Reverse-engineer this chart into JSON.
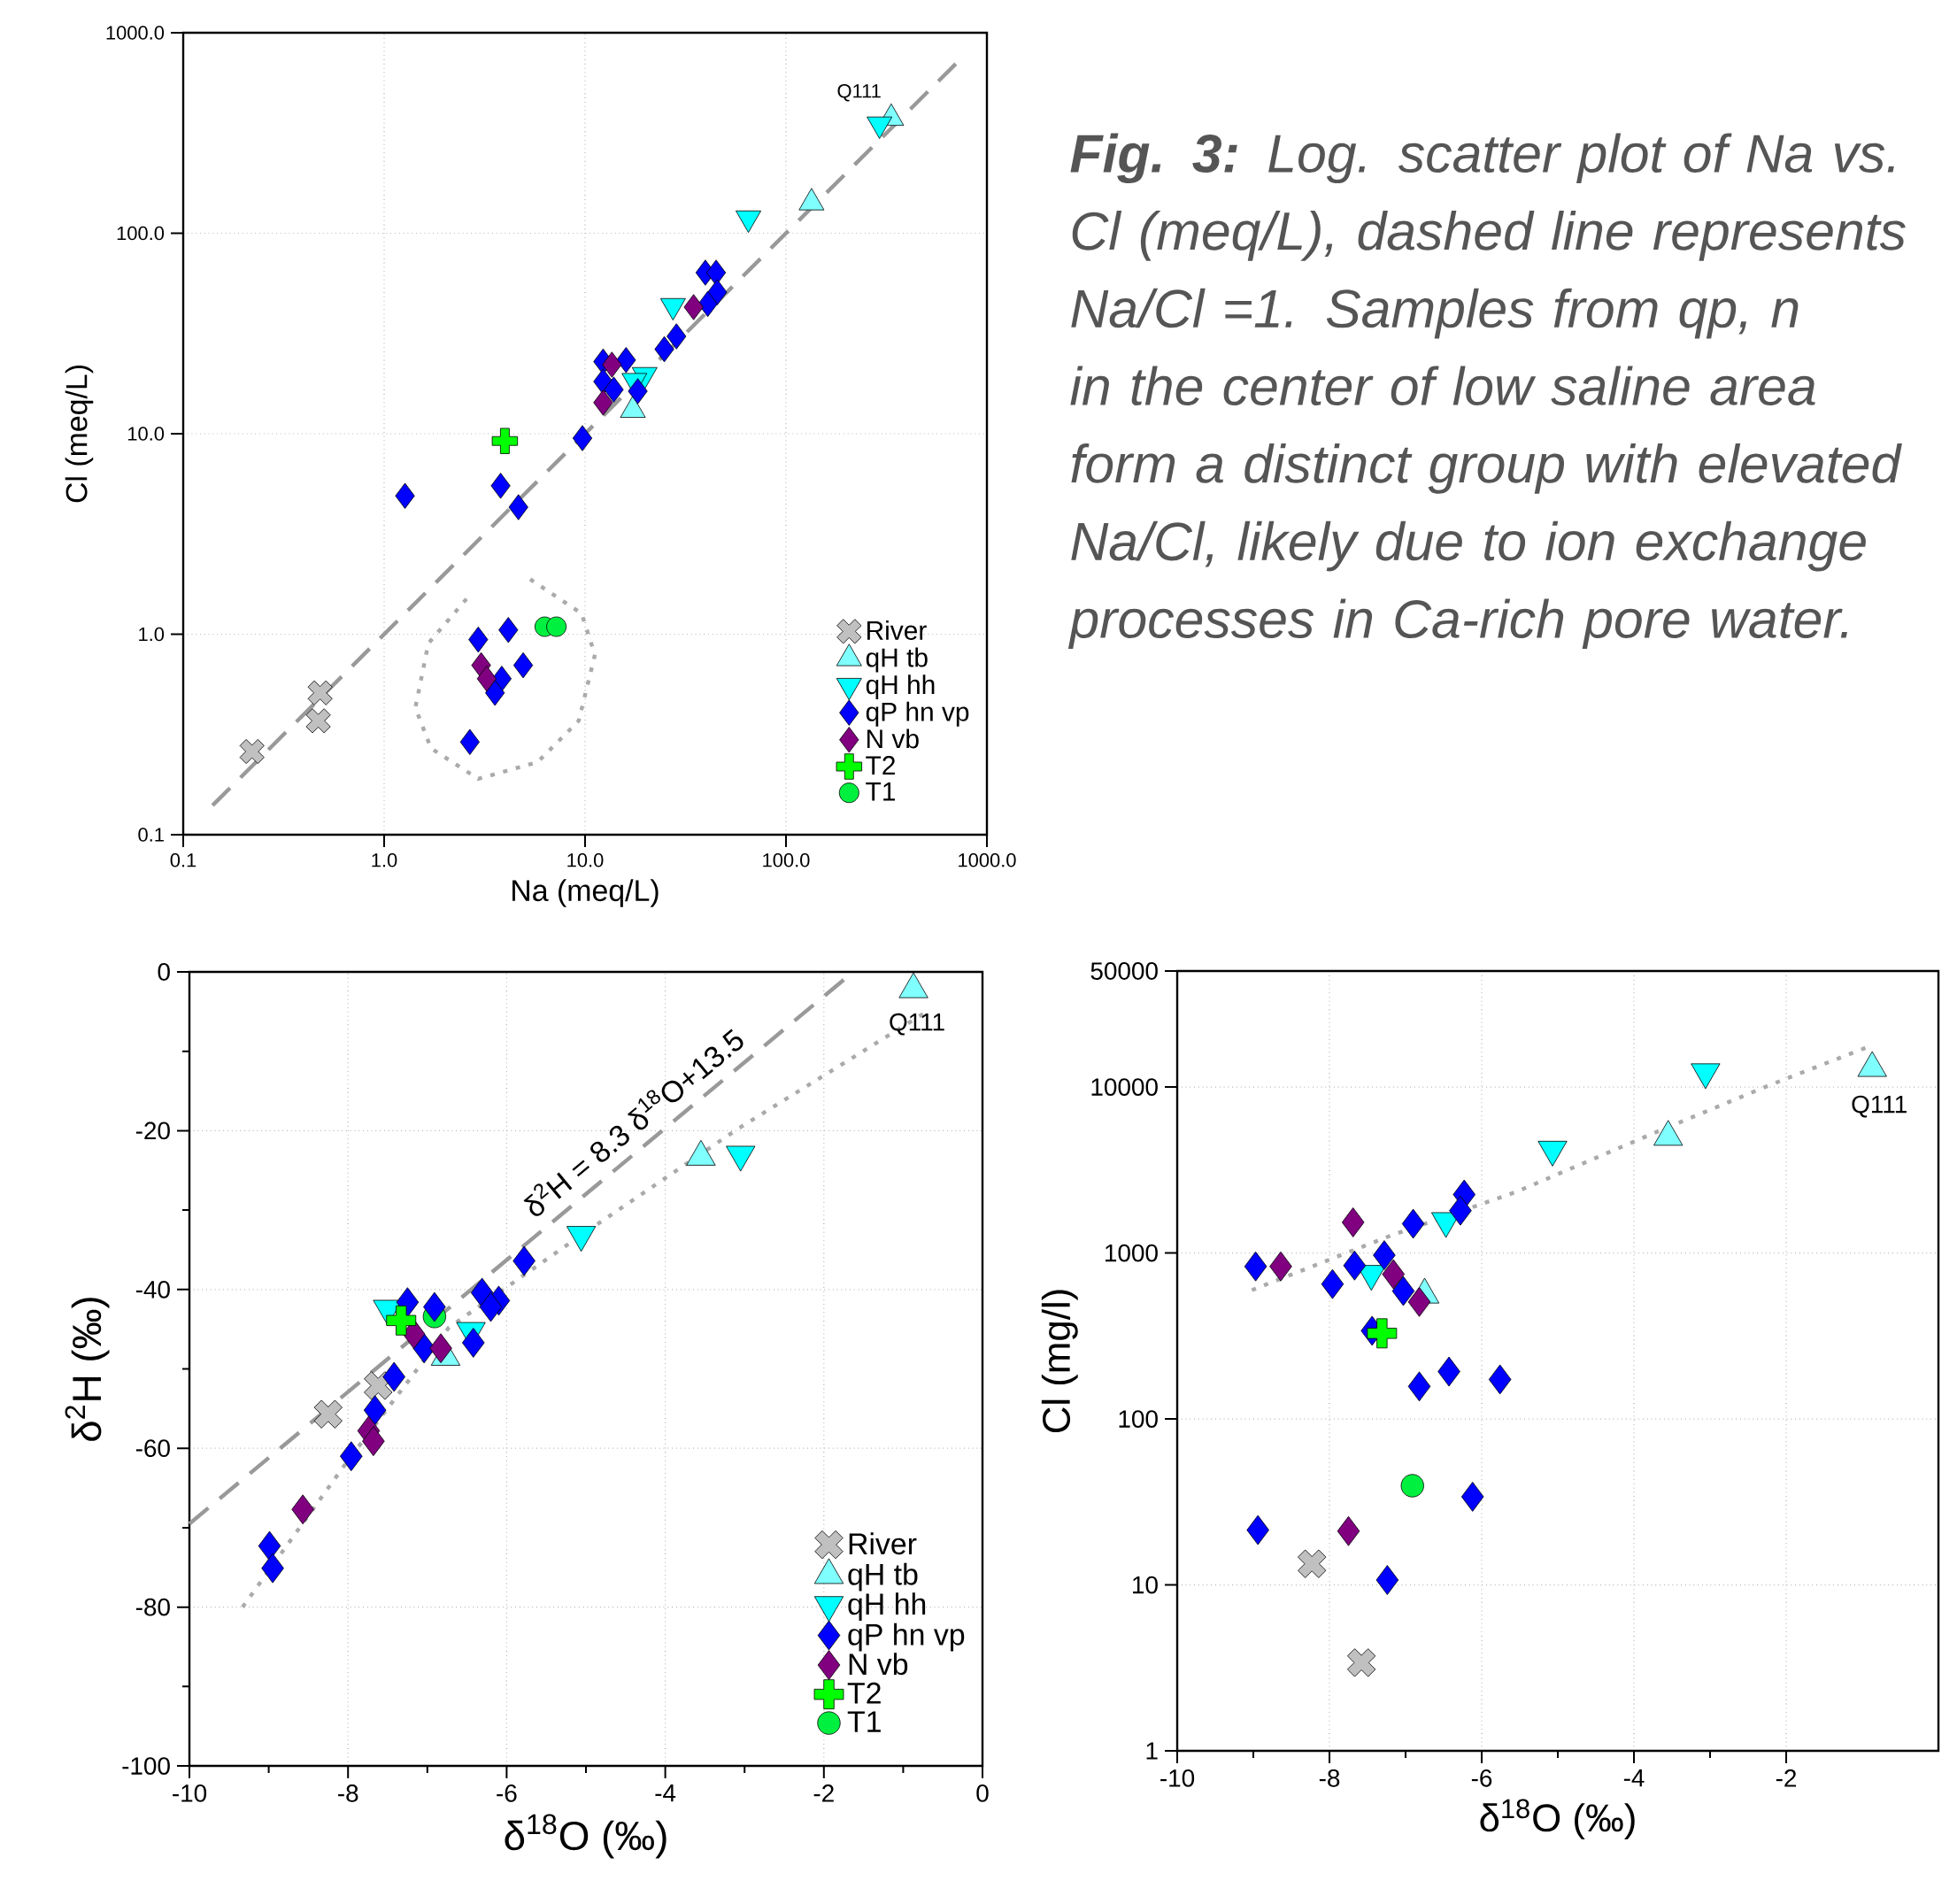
{
  "chart_data": [
    {
      "type": "scatter",
      "xlabel": "Na (meq/L)",
      "ylabel": "Cl (meq/L)",
      "log": "xy",
      "xlim": [
        0.1,
        1000
      ],
      "ylim": [
        0.1,
        1000
      ],
      "xticks": [
        0.1,
        {
          "value": 1,
          "label": "1.0"
        },
        {
          "value": 10,
          "label": "10.0"
        },
        {
          "value": 100,
          "label": "100.0"
        },
        {
          "value": 1000,
          "label": "1000.0"
        }
      ],
      "yticks": [
        0.1,
        {
          "value": 1,
          "label": "1.0"
        },
        {
          "value": 10,
          "label": "10.0"
        },
        {
          "value": 100,
          "label": "100.0"
        },
        {
          "value": 1000,
          "label": "1000.0"
        }
      ],
      "grid": true,
      "legend": "bottom right",
      "annotations": [
        {
          "text": "Q111",
          "x": 334,
          "y": 375
        }
      ],
      "series": [
        {
          "type": "line",
          "color": "#999999",
          "line_style": "dashed",
          "marker": "none",
          "x": [
            0.14,
            700
          ],
          "values": [
            0.14,
            700
          ]
        },
        {
          "type": "line",
          "color": "#aaaaaa",
          "line_style": "dotted",
          "marker": "none",
          "x": [
            5.33,
            9.6,
            11.2,
            9.3,
            5.8,
            2.94,
            1.71,
            1.43,
            1.66,
            2.57
          ],
          "values": [
            1.88,
            1.27,
            0.79,
            0.37,
            0.23,
            0.19,
            0.27,
            0.43,
            0.9,
            1.5
          ]
        },
        {
          "name": "River",
          "color": "#c0c0c0",
          "marker": "cross",
          "x": [
            0.22,
            0.48,
            0.47
          ],
          "values": [
            0.26,
            0.51,
            0.37
          ]
        },
        {
          "name": "qH tb",
          "color": "#80ffff",
          "marker": "triangle",
          "x": [
            334,
            134,
            17.3
          ],
          "values": [
            375,
            142,
            13.1
          ]
        },
        {
          "name": "qH hh",
          "color": "#00ffff",
          "marker": "triangle-down",
          "x": [
            292,
            65,
            27.4,
            19.8,
            17.6
          ],
          "values": [
            350,
            119,
            43.5,
            19.7,
            18.4
          ]
        },
        {
          "name": "qP hn vp",
          "color": "#0000ff",
          "marker": "diamond",
          "x": [
            1.27,
            3.8,
            4.66,
            9.7,
            12.3,
            16.0,
            12.3,
            13.9,
            18.3,
            24.8,
            28.5,
            39.7,
            44.9,
            45.5,
            40.8,
            2.94,
            4.15,
            4.92,
            3.85,
            3.56,
            2.67
          ],
          "values": [
            4.9,
            5.5,
            4.3,
            9.5,
            22.9,
            23.3,
            18.2,
            16.6,
            16.3,
            26.4,
            30.6,
            63.6,
            63.6,
            50.8,
            44.4,
            0.94,
            1.05,
            0.7,
            0.6,
            0.51,
            0.29
          ]
        },
        {
          "name": "N vb",
          "color": "#800080",
          "marker": "diamond",
          "x": [
            12.3,
            13.6,
            34.7,
            3.04,
            3.24
          ],
          "values": [
            14.3,
            22.1,
            42.8,
            0.7,
            0.6
          ]
        },
        {
          "name": "T2",
          "color": "#00ff00",
          "marker": "cross",
          "x": [
            3.99
          ],
          "values": [
            9.2
          ]
        },
        {
          "name": "T1",
          "color": "#00f040",
          "marker": "circle",
          "x": [
            6.3,
            7.2
          ],
          "values": [
            1.09,
            1.09
          ]
        }
      ]
    },
    {
      "type": "scatter",
      "xlabel": "δ$^{18}$O (‰)",
      "ylabel": "δ$^{2}$H (‰)",
      "xlim": [
        -10,
        0
      ],
      "ylim": [
        -100,
        0
      ],
      "xticks": [
        -10,
        -8,
        -6,
        -4,
        -2,
        0
      ],
      "yticks": [
        -100,
        -80,
        -60,
        -40,
        -20,
        0
      ],
      "grid": true,
      "legend": "bottom right",
      "annotations": [
        {
          "text": "δ$^{2}$H = 8.3 δ$^{18}$O+13.5",
          "x": -4.2,
          "y": -21.4
        },
        {
          "text": "Q111",
          "x": -0.87,
          "y": -2.2
        }
      ],
      "series": [
        {
          "type": "line",
          "color": "#999999",
          "line_style": "dashed",
          "marker": "none",
          "x": [
            -10,
            -1.75
          ],
          "values": [
            -69.5,
            -1.0
          ]
        },
        {
          "type": "line",
          "color": "#aaaaaa",
          "line_style": "dotted",
          "marker": "none",
          "x": [
            -9.33,
            -8.02,
            -6.73,
            -5.11,
            -3.09,
            -0.75
          ],
          "values": [
            -80,
            -61.8,
            -44.8,
            -33.5,
            -19.8,
            -5.3
          ]
        },
        {
          "name": "River",
          "color": "#c0c0c0",
          "marker": "cross",
          "x": [
            -8.25,
            -7.62
          ],
          "values": [
            -55.7,
            -52.1
          ]
        },
        {
          "name": "qH tb",
          "color": "#80ffff",
          "marker": "triangle",
          "x": [
            -0.87,
            -3.55,
            -6.77
          ],
          "values": [
            -2.2,
            -23.3,
            -48.5
          ]
        },
        {
          "name": "qH hh",
          "color": "#00ffff",
          "marker": "triangle-down",
          "x": [
            -3.05,
            -5.06,
            -7.5,
            -6.45
          ],
          "values": [
            -23,
            -33.1,
            -42.4,
            -45.2
          ]
        },
        {
          "name": "qP hn vp",
          "color": "#0000ff",
          "marker": "diamond",
          "x": [
            -8.99,
            -8.95,
            -7.96,
            -7.66,
            -7.42,
            -7.25,
            -7.04,
            -6.91,
            -6.42,
            -6.31,
            -6.1,
            -6.2,
            -5.78
          ],
          "values": [
            -72.3,
            -75.1,
            -61.0,
            -55.2,
            -51.0,
            -41.6,
            -47.4,
            -42.2,
            -46.7,
            -40.4,
            -41.4,
            -42.2,
            -36.4
          ]
        },
        {
          "name": "N vb",
          "color": "#800080",
          "marker": "diamond",
          "x": [
            -8.57,
            -7.74,
            -7.68,
            -6.83,
            -7.17
          ],
          "values": [
            -67.7,
            -57.8,
            -59.1,
            -47.4,
            -45.6
          ]
        },
        {
          "name": "T2",
          "color": "#00ff00",
          "marker": "cross",
          "x": [
            -7.33
          ],
          "values": [
            -43.9
          ]
        },
        {
          "name": "T1",
          "color": "#00f040",
          "marker": "circle",
          "x": [
            -6.91
          ],
          "values": [
            -43.4
          ]
        }
      ]
    },
    {
      "type": "scatter",
      "xlabel": "δ$^{18}$O (‰)",
      "ylabel": "Cl (mg/l)",
      "log": "y",
      "xlim": [
        -10,
        0
      ],
      "ylim": [
        1,
        50000
      ],
      "xticks": [
        -10,
        -8,
        -6,
        -4,
        -2
      ],
      "yticks": [
        1,
        10,
        100,
        1000,
        10000,
        50000
      ],
      "grid": true,
      "annotations": [
        {
          "text": "Q111",
          "x": -0.87,
          "y": 13000
        }
      ],
      "series": [
        {
          "type": "line",
          "color": "#aaaaaa",
          "line_style": "dotted",
          "marker": "none",
          "x": [
            -9.02,
            -7.2,
            -5.54,
            -3.72,
            -2.21,
            -0.96
          ],
          "values": [
            597,
            1270,
            2340,
            5320,
            10300,
            17200
          ]
        },
        {
          "color": "#c0c0c0",
          "marker": "cross",
          "x": [
            -8.23,
            -7.58
          ],
          "values": [
            13.4,
            3.4
          ]
        },
        {
          "color": "#80ffff",
          "marker": "triangle",
          "x": [
            -0.87,
            -3.55,
            -6.75
          ],
          "values": [
            13000,
            5000,
            560
          ]
        },
        {
          "color": "#00ffff",
          "marker": "triangle-down",
          "x": [
            -3.06,
            -5.07,
            -6.47,
            -7.45
          ],
          "values": [
            12300,
            4200,
            1560,
            750
          ]
        },
        {
          "color": "#0000ff",
          "marker": "diamond",
          "x": [
            -8.97,
            -7.96,
            -7.67,
            -7.28,
            -7.03,
            -6.9,
            -6.23,
            -6.28,
            -7.44,
            -6.82,
            -6.43,
            -5.76,
            -6.12,
            -8.94,
            -7.24
          ],
          "values": [
            830,
            650,
            840,
            970,
            590,
            1500,
            2250,
            1800,
            340,
            157,
            193,
            173,
            34,
            21.4,
            10.7
          ]
        },
        {
          "color": "#800080",
          "marker": "diamond",
          "x": [
            -7.69,
            -8.64,
            -7.16,
            -6.82,
            -7.75
          ],
          "values": [
            1530,
            830,
            745,
            507,
            21.1
          ]
        },
        {
          "color": "#00ff00",
          "marker": "cross",
          "x": [
            -7.31
          ],
          "values": [
            328
          ]
        },
        {
          "color": "#00f040",
          "marker": "circle",
          "x": [
            -6.91
          ],
          "values": [
            39.6
          ]
        }
      ]
    },
    {
      "type": "other",
      "annotations": [
        "**Fig. 3:** Log. scatter plot of Na vs. Cl (meq/L), dashed line represents Na/Cl =1. Samples from qp, n in the center of low saline area form a distinct group with elevated Na/Cl, likely due to ion exchange processes in Ca-rich pore water."
      ]
    }
  ]
}
